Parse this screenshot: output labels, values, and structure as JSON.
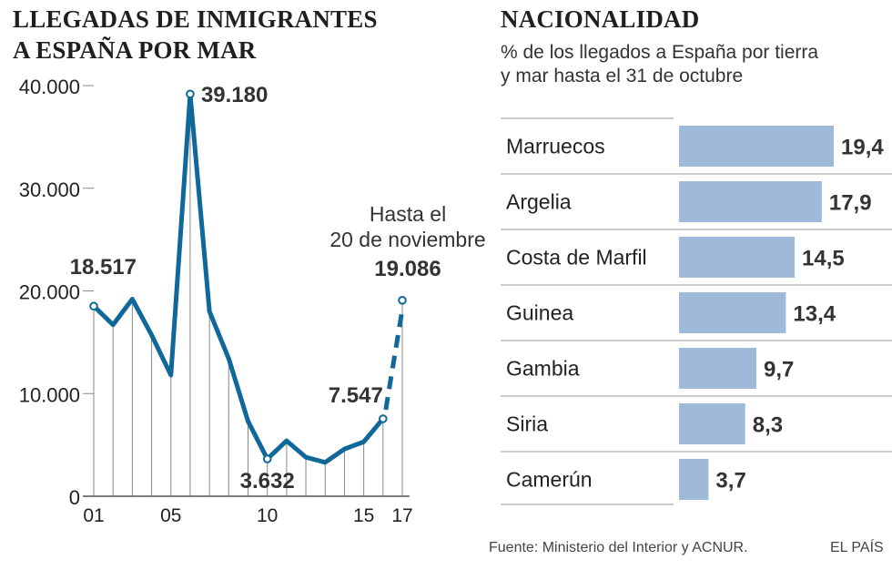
{
  "left": {
    "title_line1": "LLEGADAS DE INMIGRANTES",
    "title_line2": "A ESPAÑA POR MAR"
  },
  "right": {
    "title": "NACIONALIDAD",
    "subtitle_line1": "% de los llegados a España por tierra",
    "subtitle_line2": "y mar hasta el 31 de octubre"
  },
  "footer": {
    "source": "Fuente: Ministerio del Interior y ACNUR.",
    "brand": "EL PAÍS"
  },
  "colors": {
    "line": "#10689a",
    "bar": "#9fb9d8",
    "grid": "#888888"
  },
  "chart_data": [
    {
      "type": "line",
      "title": "LLEGADAS DE INMIGRANTES A ESPAÑA POR MAR",
      "x": [
        2001,
        2002,
        2003,
        2004,
        2005,
        2006,
        2007,
        2008,
        2009,
        2010,
        2011,
        2012,
        2013,
        2014,
        2015,
        2016,
        2017
      ],
      "series": [
        {
          "name": "Llegadas",
          "values": [
            18517,
            16700,
            19200,
            15700,
            11800,
            39180,
            18000,
            13400,
            7300,
            3632,
            5400,
            3800,
            3300,
            4600,
            5300,
            7547,
            19086
          ]
        }
      ],
      "projected_from_index": 15,
      "ylim": [
        0,
        40000
      ],
      "yticks": [
        0,
        10000,
        20000,
        30000,
        40000
      ],
      "ytick_labels": [
        "0",
        "10.000",
        "20.000",
        "30.000",
        "40.000"
      ],
      "xtick_years": [
        2001,
        2005,
        2010,
        2015,
        2017
      ],
      "xtick_labels": [
        "01",
        "05",
        "10",
        "15",
        "17"
      ],
      "annotations": [
        {
          "index": 0,
          "label": "18.517"
        },
        {
          "index": 5,
          "label": "39.180"
        },
        {
          "index": 9,
          "label": "3.632"
        },
        {
          "index": 15,
          "label": "7.547"
        },
        {
          "index": 16,
          "label": "19.086",
          "note_line1": "Hasta el",
          "note_line2": "20 de noviembre"
        }
      ]
    },
    {
      "type": "bar",
      "orientation": "horizontal",
      "title": "NACIONALIDAD",
      "categories": [
        "Marruecos",
        "Argelia",
        "Costa de Marfil",
        "Guinea",
        "Gambia",
        "Siria",
        "Camerún"
      ],
      "values": [
        19.4,
        17.9,
        14.5,
        13.4,
        9.7,
        8.3,
        3.7
      ],
      "value_labels": [
        "19,4",
        "17,9",
        "14,5",
        "13,4",
        "9,7",
        "8,3",
        "3,7"
      ],
      "xlim": [
        0,
        19.4
      ]
    }
  ]
}
